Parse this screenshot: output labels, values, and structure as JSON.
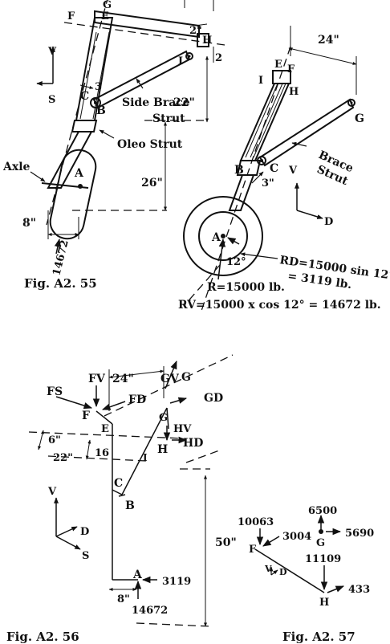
{
  "fig55": {
    "caption": "Fig. A2. 55",
    "labels": {
      "G": "G",
      "E": "E",
      "F": "F",
      "H": "H",
      "I": "I",
      "C": "C",
      "B": "B",
      "A": "A",
      "V": "V",
      "S": "S",
      "dim2": "2\"",
      "dim2v": "2",
      "dim3": "3",
      "dim22": "22\"",
      "dim26": "26\"",
      "dim8": "8\"",
      "load": "14672",
      "side_brace": "Side Brace",
      "strut": "Strut",
      "oleo": "Oleo Strut",
      "axle": "Axle"
    }
  },
  "fig55b": {
    "labels": {
      "E": "E",
      "F": "F",
      "I": "I",
      "H": "H",
      "G": "G",
      "B": "B",
      "C": "C",
      "A": "A",
      "dim24": "24\"",
      "dim3": "3\"",
      "V": "V",
      "D": "D",
      "brace": "Brace",
      "strut": "Strut",
      "angle": "12°",
      "rd_line1": "RD=15000 sin 12°",
      "rd_line2": "= 3119 lb.",
      "r_total": "R=15000 lb.",
      "rv": "RV=15000 x cos 12° = 14672 lb."
    }
  },
  "fig56": {
    "caption": "Fig. A2. 56",
    "labels": {
      "FV": "FV",
      "FS": "FS",
      "FD": "FD",
      "F": "F",
      "E": "E",
      "GV": "GV",
      "G": "G",
      "GD": "GD",
      "HV": "HV",
      "H": "H",
      "HD": "HD",
      "I": "I",
      "C": "C",
      "B": "B",
      "A": "A",
      "dim24": "24\"",
      "dim6": "6\"",
      "dim22": "22\"",
      "dim16": "16",
      "dim50": "50\"",
      "dim8": "8\"",
      "V": "V",
      "D": "D",
      "S": "S",
      "f3119": "3119",
      "f14672": "14672"
    }
  },
  "fig57": {
    "caption": "Fig. A2. 57",
    "labels": {
      "v10063": "10063",
      "v3004": "3004",
      "v6500": "6500",
      "v5690": "5690",
      "v11109": "11109",
      "v433": "433",
      "F": "F",
      "G": "G",
      "H": "H",
      "V": "V",
      "D": "D"
    }
  }
}
